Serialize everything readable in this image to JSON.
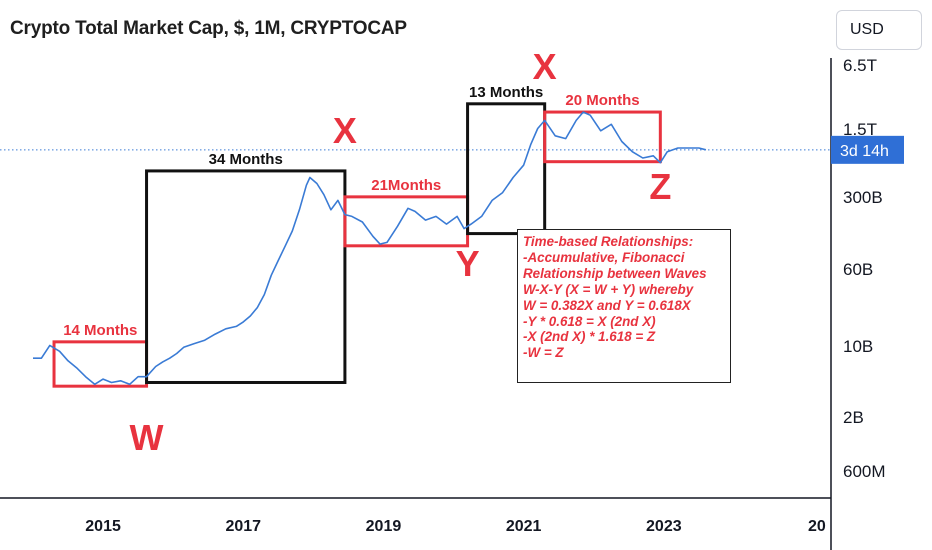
{
  "header": {
    "title": "Crypto Total Market Cap, $, 1M, CRYPTOCAP",
    "currency_label": "USD"
  },
  "colors": {
    "series": "#3a7bd5",
    "annotation_red": "#e8333f",
    "box_black": "#111111",
    "axis": "#131722",
    "countdown_bg": "#2f6fd6"
  },
  "notes": [
    "Time-based Relationships:",
    "-Accumulative, Fibonacci",
    "Relationship between Waves",
    "W-X-Y (X = W + Y) whereby",
    "W = 0.382X and Y = 0.618X",
    "-Y * 0.618 = X (2nd X)",
    "-X (2nd X) * 1.618 = Z",
    "-W = Z"
  ],
  "countdown": "3d 14h",
  "chart_data": {
    "type": "line",
    "yscale": "log",
    "xlim": [
      2014.0,
      2024.8
    ],
    "ylim": [
      400000000,
      10000000000000
    ],
    "x_ticks": [
      "2015",
      "2017",
      "2019",
      "2021",
      "2023",
      "20"
    ],
    "y_ticks": [
      "6.5T",
      "1.5T",
      "300B",
      "60B",
      "10B",
      "2B",
      "600M"
    ],
    "current_line": "dotted",
    "series": [
      {
        "x": [
          2014.0,
          2014.12,
          2014.24,
          2014.38,
          2014.5,
          2014.62,
          2014.75,
          2014.88,
          2015.0,
          2015.12,
          2015.25,
          2015.38,
          2015.5,
          2015.62,
          2015.75,
          2015.85,
          2015.95,
          2016.05,
          2016.15,
          2016.3,
          2016.45,
          2016.6,
          2016.75,
          2016.9,
          2017.0,
          2017.1,
          2017.2,
          2017.3,
          2017.4,
          2017.5,
          2017.6,
          2017.7,
          2017.8,
          2017.9,
          2017.95,
          2018.05,
          2018.15,
          2018.25,
          2018.35,
          2018.45,
          2018.55,
          2018.7,
          2018.85,
          2018.95,
          2019.05,
          2019.2,
          2019.35,
          2019.45,
          2019.6,
          2019.75,
          2019.9,
          2020.05,
          2020.15,
          2020.25,
          2020.4,
          2020.55,
          2020.7,
          2020.85,
          2021.0,
          2021.1,
          2021.2,
          2021.3,
          2021.45,
          2021.6,
          2021.75,
          2021.85,
          2021.95,
          2022.1,
          2022.25,
          2022.4,
          2022.55,
          2022.7,
          2022.85,
          2022.95,
          2023.05,
          2023.2,
          2023.35,
          2023.5,
          2023.6
        ],
        "y": [
          8500000000,
          8500000000,
          11500000000,
          10000000000,
          8000000000,
          6800000000,
          5500000000,
          4600000000,
          5200000000,
          4800000000,
          5000000000,
          4600000000,
          5500000000,
          5500000000,
          7000000000,
          7800000000,
          8500000000,
          9500000000,
          11000000000,
          12000000000,
          13000000000,
          15000000000,
          17000000000,
          18000000000,
          20000000000,
          23000000000,
          28000000000,
          38000000000,
          60000000000,
          85000000000,
          120000000000,
          170000000000,
          280000000000,
          500000000000,
          600000000000,
          520000000000,
          400000000000,
          280000000000,
          350000000000,
          250000000000,
          240000000000,
          210000000000,
          150000000000,
          125000000000,
          130000000000,
          190000000000,
          290000000000,
          270000000000,
          220000000000,
          240000000000,
          200000000000,
          240000000000,
          180000000000,
          200000000000,
          240000000000,
          350000000000,
          420000000000,
          600000000000,
          800000000000,
          1300000000000,
          1900000000000,
          2300000000000,
          1600000000000,
          1500000000000,
          2300000000000,
          2800000000000,
          2600000000000,
          1800000000000,
          2100000000000,
          1400000000000,
          1100000000000,
          950000000000,
          1000000000000,
          850000000000,
          1100000000000,
          1200000000000,
          1200000000000,
          1200000000000,
          1150000000000
        ]
      }
    ],
    "annotations": [
      {
        "kind": "box",
        "color": "red",
        "x": [
          2014.3,
          2015.62
        ],
        "y": [
          4400000000,
          12500000000
        ],
        "label": "14 Months",
        "label_pos": "top"
      },
      {
        "kind": "box",
        "color": "black",
        "x": [
          2015.62,
          2018.45
        ],
        "y": [
          4800000000,
          700000000000
        ],
        "label": "34 Months",
        "label_pos": "top"
      },
      {
        "kind": "box",
        "color": "red",
        "x": [
          2018.45,
          2020.2
        ],
        "y": [
          120000000000,
          380000000000
        ],
        "label": "21Months",
        "label_pos": "top"
      },
      {
        "kind": "box",
        "color": "black",
        "x": [
          2020.2,
          2021.3
        ],
        "y": [
          160000000000,
          3400000000000
        ],
        "label": "13 Months",
        "label_pos": "top"
      },
      {
        "kind": "box",
        "color": "red",
        "x": [
          2021.3,
          2022.95
        ],
        "y": [
          870000000000,
          2800000000000
        ],
        "label": "20 Months",
        "label_pos": "top"
      },
      {
        "kind": "wave_label",
        "text": "W",
        "x": 2015.62
      },
      {
        "kind": "wave_label",
        "text": "X",
        "x": 2018.45
      },
      {
        "kind": "wave_label",
        "text": "Y",
        "x": 2020.2
      },
      {
        "kind": "wave_label",
        "text": "X",
        "x": 2021.3
      },
      {
        "kind": "wave_label",
        "text": "Z",
        "x": 2022.95
      }
    ]
  }
}
